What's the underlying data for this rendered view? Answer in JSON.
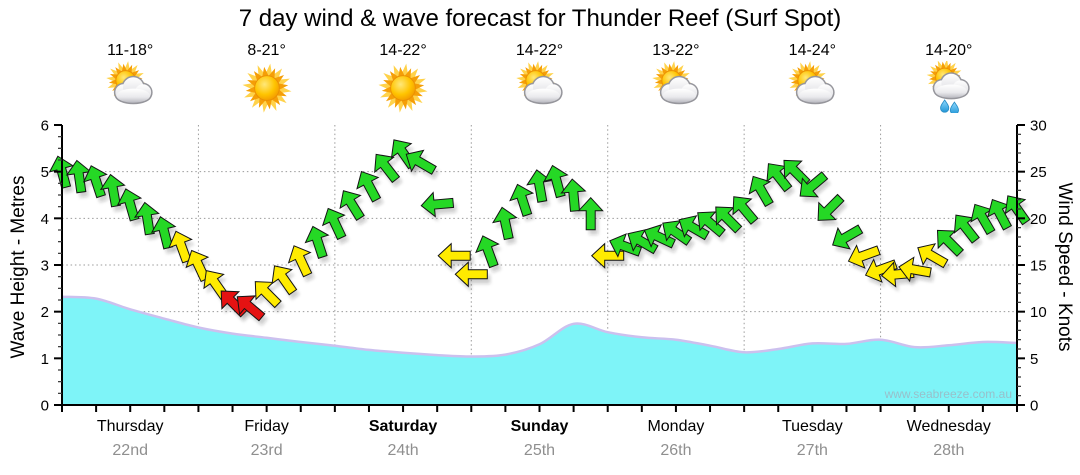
{
  "title": "7 day wind & wave forecast for Thunder Reef (Surf Spot)",
  "watermark": "www.seabreeze.com.au",
  "axes": {
    "left_label": "Wave Height - Metres",
    "right_label": "Wind Speed - Knots",
    "left_ticks": [
      0,
      1,
      2,
      3,
      4,
      5,
      6
    ],
    "right_ticks": [
      0,
      5,
      10,
      15,
      20,
      25,
      30
    ]
  },
  "days": [
    {
      "name": "Thursday",
      "date": "22nd",
      "temp": "11-18°",
      "icon": "sun-cloud",
      "weekend": false
    },
    {
      "name": "Friday",
      "date": "23rd",
      "temp": "8-21°",
      "icon": "sun",
      "weekend": false
    },
    {
      "name": "Saturday",
      "date": "24th",
      "temp": "14-22°",
      "icon": "sun",
      "weekend": true
    },
    {
      "name": "Sunday",
      "date": "25th",
      "temp": "14-22°",
      "icon": "sun-cloud",
      "weekend": true
    },
    {
      "name": "Monday",
      "date": "26th",
      "temp": "13-22°",
      "icon": "sun-cloud",
      "weekend": false
    },
    {
      "name": "Tuesday",
      "date": "27th",
      "temp": "14-24°",
      "icon": "sun-cloud",
      "weekend": false
    },
    {
      "name": "Wednesday",
      "date": "28th",
      "temp": "14-20°",
      "icon": "sun-cloud-rain",
      "weekend": false
    }
  ],
  "chart_data": {
    "type": "area+wind-arrows",
    "x_unit": "hours",
    "x_range": [
      0,
      168
    ],
    "x_tick_step_hours": 6,
    "ylim_left_metres": [
      0,
      6
    ],
    "ylim_right_knots": [
      0,
      30
    ],
    "grid": "dotted, horizontal at 1-5 m, vertical at day boundaries",
    "wave_height_m": {
      "x_hours": [
        0,
        6,
        12,
        18,
        24,
        30,
        36,
        42,
        48,
        54,
        60,
        66,
        72,
        78,
        84,
        90,
        96,
        102,
        108,
        114,
        120,
        126,
        132,
        138,
        144,
        150,
        156,
        162,
        168
      ],
      "values": [
        2.32,
        2.28,
        2.05,
        1.85,
        1.66,
        1.53,
        1.44,
        1.35,
        1.27,
        1.18,
        1.12,
        1.07,
        1.04,
        1.08,
        1.3,
        1.74,
        1.56,
        1.45,
        1.4,
        1.27,
        1.13,
        1.2,
        1.32,
        1.31,
        1.4,
        1.24,
        1.28,
        1.35,
        1.33
      ]
    },
    "wind": {
      "sample_hours": [
        0,
        3,
        6,
        9,
        12,
        15,
        18,
        21,
        24,
        27,
        30,
        33,
        36,
        39,
        42,
        45,
        48,
        51,
        54,
        57,
        60,
        63,
        66,
        69,
        72,
        75,
        78,
        81,
        84,
        87,
        90,
        93,
        96,
        99,
        102,
        105,
        108,
        111,
        114,
        117,
        120,
        123,
        126,
        129,
        132,
        135,
        138,
        141,
        144,
        147,
        150,
        153,
        156,
        159,
        162,
        165,
        168
      ],
      "speed_knots": [
        25,
        24.5,
        24,
        23,
        21.5,
        20,
        18.5,
        17,
        15,
        13,
        11,
        10.5,
        12,
        13.5,
        15.5,
        17.5,
        19.5,
        21.5,
        23.5,
        25.5,
        27,
        26,
        21.5,
        16,
        14,
        16.5,
        19.5,
        22,
        23.5,
        24,
        22.5,
        20.5,
        16,
        17,
        17.5,
        18,
        18.5,
        19,
        19.5,
        20,
        21,
        23,
        24.5,
        25,
        23.5,
        21,
        18,
        16,
        14.5,
        14,
        14.5,
        16,
        17.5,
        19,
        20,
        20.5,
        21
      ],
      "dir_deg": [
        -15,
        -8,
        -18,
        -10,
        -16,
        -9,
        -14,
        -20,
        -25,
        -35,
        -45,
        -50,
        -45,
        -35,
        -25,
        -18,
        -25,
        -32,
        -28,
        -38,
        -35,
        -60,
        -95,
        -90,
        -90,
        -20,
        -12,
        -18,
        -10,
        -15,
        -5,
        0,
        -90,
        -70,
        -60,
        -65,
        -55,
        -60,
        -50,
        -45,
        -40,
        -30,
        -38,
        -45,
        -130,
        -135,
        -120,
        -110,
        -110,
        -95,
        -80,
        -60,
        -45,
        -38,
        -30,
        -28,
        -35
      ],
      "colors": [
        "g",
        "g",
        "g",
        "g",
        "g",
        "g",
        "g",
        "y",
        "y",
        "y",
        "r",
        "r",
        "y",
        "y",
        "y",
        "g",
        "g",
        "g",
        "g",
        "g",
        "g",
        "g",
        "g",
        "y",
        "y",
        "g",
        "g",
        "g",
        "g",
        "g",
        "g",
        "g",
        "y",
        "g",
        "g",
        "g",
        "g",
        "g",
        "g",
        "g",
        "g",
        "g",
        "g",
        "g",
        "g",
        "g",
        "g",
        "y",
        "y",
        "y",
        "y",
        "y",
        "g",
        "g",
        "g",
        "g",
        "g"
      ]
    },
    "colors": {
      "wave_fill": "#7ef4f8",
      "wave_edge": "#ccc0ee",
      "wind_fresh": "#25d825",
      "wind_moderate": "#ffeb00",
      "wind_light": "#e51212",
      "grid": "#9b9b9b"
    }
  }
}
